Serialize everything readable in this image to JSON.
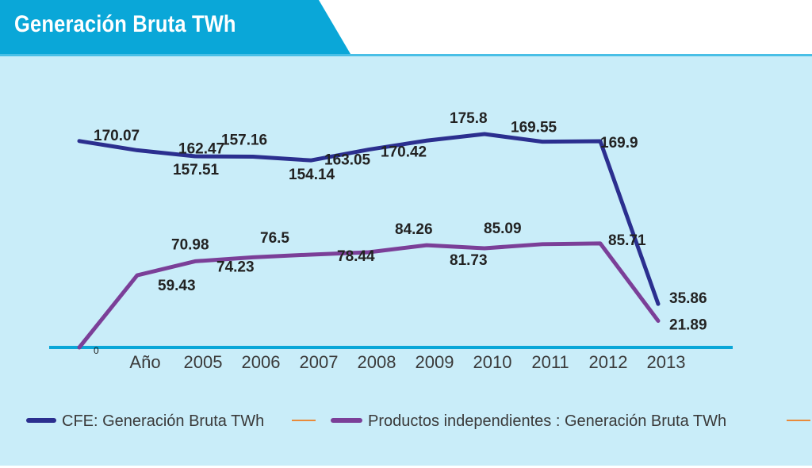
{
  "header": {
    "title": "Generación Bruta TWh"
  },
  "chart_data": {
    "type": "line",
    "categories": [
      "",
      "Año",
      "2005",
      "2006",
      "2007",
      "2008",
      "2009",
      "2010",
      "2011",
      "2012",
      "2013"
    ],
    "series": [
      {
        "name": "CFE: Generación Bruta TWh",
        "color": "#2b2f8f",
        "values": [
          170.07,
          162.47,
          157.51,
          157.16,
          154.14,
          163.05,
          170.42,
          175.8,
          169.55,
          169.9,
          35.86
        ],
        "labels": [
          "170.07",
          "162.47",
          "157.51",
          "157.16",
          "154.14",
          "163.05",
          "170.42",
          "175.8",
          "169.55",
          "169.9",
          "35.86"
        ]
      },
      {
        "name": "Productos independientes : Generación Bruta TWh",
        "color": "#7b3f98",
        "values": [
          0,
          59.43,
          70.98,
          74.23,
          76.5,
          78.44,
          84.26,
          81.73,
          85.09,
          85.71,
          21.89
        ],
        "labels": [
          "0",
          "59.43",
          "70.98",
          "74.23",
          "76.5",
          "78.44",
          "84.26",
          "81.73",
          "85.09",
          "85.71",
          "21.89"
        ]
      }
    ],
    "legend_extra_color": "#e98a3a",
    "axis_color": "#0aa7d8",
    "legend_position": "bottom",
    "grid": false
  }
}
